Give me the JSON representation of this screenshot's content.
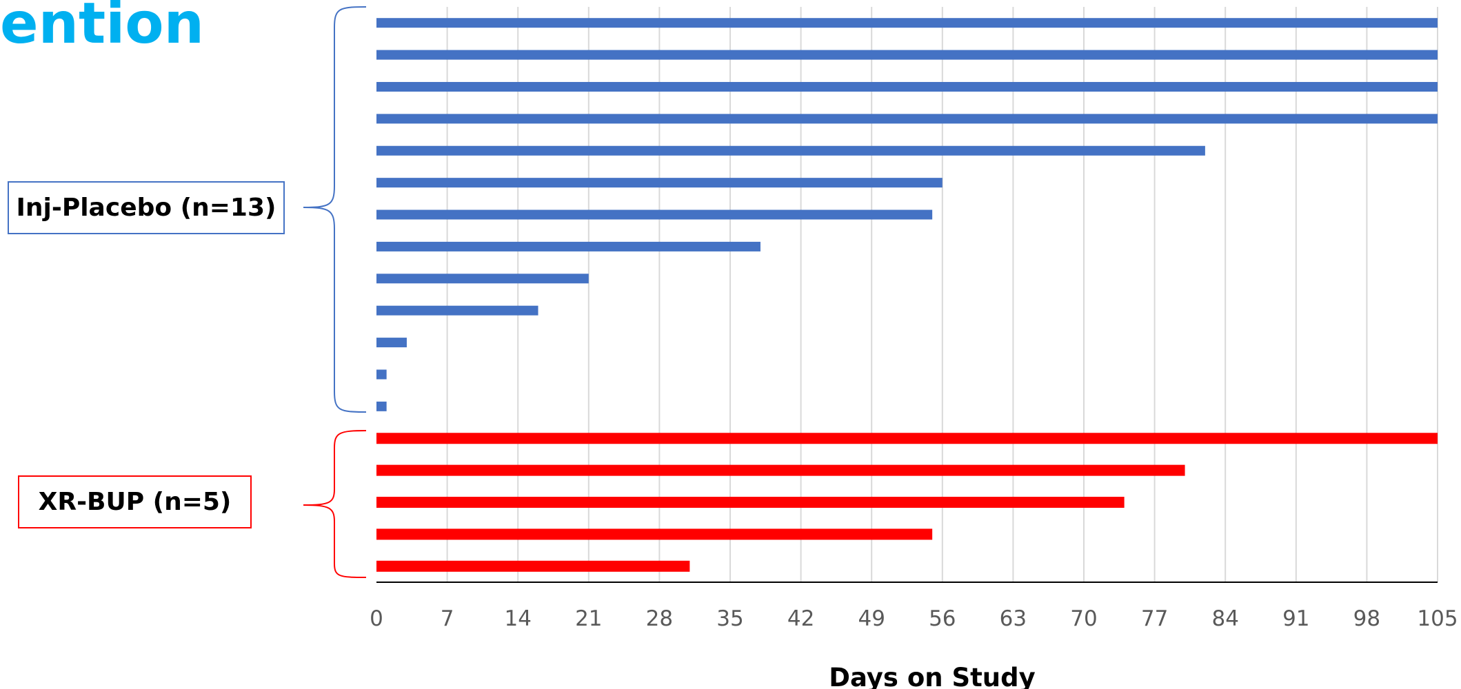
{
  "slide": {
    "title_fragment": "ention"
  },
  "colors": {
    "title": "#00B0F0",
    "placebo": "#4472C4",
    "xrbup": "#FF0000",
    "gridline": "#D9D9D9",
    "tick_text": "#595959"
  },
  "chart_data": {
    "type": "bar",
    "orientation": "horizontal",
    "xlabel": "Days on Study",
    "xlim": [
      0,
      105
    ],
    "xticks": [
      0,
      7,
      14,
      21,
      28,
      35,
      42,
      49,
      56,
      63,
      70,
      77,
      84,
      91,
      98,
      105
    ],
    "grid": "vertical",
    "groups": [
      {
        "name": "Inj-Placebo (n=13)",
        "color": "#4472C4",
        "values": [
          105,
          105,
          105,
          105,
          82,
          56,
          55,
          38,
          21,
          16,
          3,
          1,
          1
        ]
      },
      {
        "name": "XR-BUP (n=5)",
        "color": "#FF0000",
        "values": [
          105,
          80,
          74,
          55,
          31
        ]
      }
    ]
  }
}
